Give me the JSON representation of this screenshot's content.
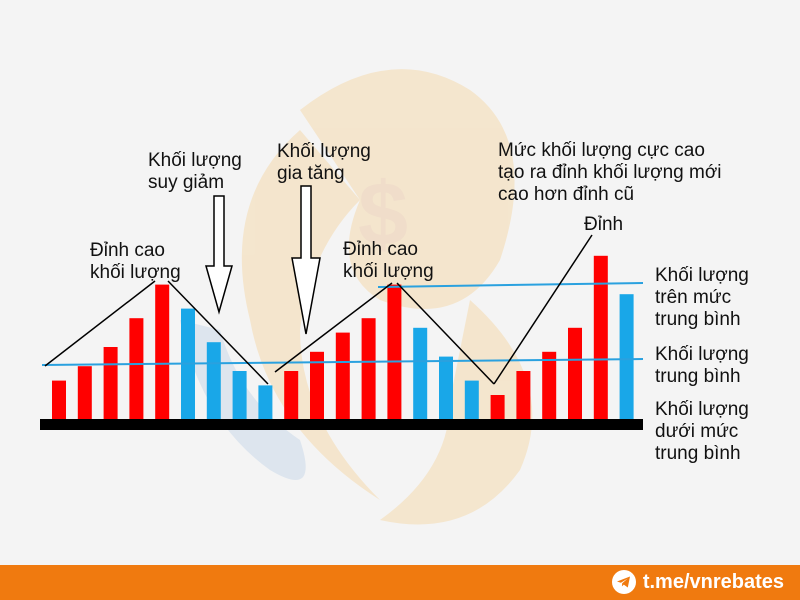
{
  "chart_data": {
    "type": "bar",
    "values": [
      4.0,
      5.5,
      7.5,
      10.5,
      14.0,
      11.5,
      8.0,
      5.0,
      3.5,
      5.0,
      7.0,
      9.0,
      10.5,
      14.0,
      9.5,
      6.5,
      4.0,
      2.5,
      5.0,
      7.0,
      9.5,
      17.0,
      13.0
    ],
    "colors": [
      "red",
      "red",
      "red",
      "red",
      "red",
      "blue",
      "blue",
      "blue",
      "blue",
      "red",
      "red",
      "red",
      "red",
      "red",
      "blue",
      "blue",
      "blue",
      "red",
      "red",
      "red",
      "red",
      "red",
      "blue"
    ],
    "average_level": 5.5,
    "above_average_level": 13.8
  },
  "colors": {
    "red": "#ff0000",
    "blue": "#19a7e8",
    "avg_line": "#2aa1df",
    "baseline": "#000000"
  },
  "annotations": {
    "peak_left": "Đỉnh cao\nkhối lượng",
    "decreasing": "Khối lượng\nsuy giảm",
    "increasing": "Khối lượng\ngia tăng",
    "peak_middle": "Đỉnh cao\nkhối lượng",
    "record": "Mức khối lượng cực cao\ntạo ra đỉnh khối lượng mới\ncao hơn đỉnh cũ",
    "peak": "Đỉnh",
    "above_average": "Khối lượng\ntrên mức\ntrung bình",
    "average": "Khối lượng\ntrung bình",
    "below_average": "Khối lượng\ndưới mức\ntrung bình"
  },
  "footer": {
    "link": "t.me/vnrebates",
    "icon": "telegram-icon"
  }
}
